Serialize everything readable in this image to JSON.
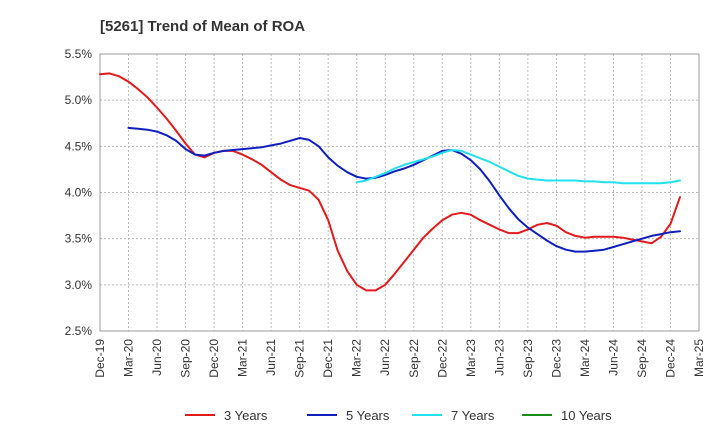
{
  "chart_data": {
    "type": "line",
    "title": "[5261]  Trend of Mean of ROA",
    "xlabel": "",
    "ylabel": "",
    "ylim": [
      2.5,
      5.5
    ],
    "y_ticks": [
      "2.5%",
      "3.0%",
      "3.5%",
      "4.0%",
      "4.5%",
      "5.0%",
      "5.5%"
    ],
    "y_tick_values": [
      2.5,
      3.0,
      3.5,
      4.0,
      4.5,
      5.0,
      5.5
    ],
    "x_tick_labels": [
      "Dec-19",
      "Mar-20",
      "Jun-20",
      "Sep-20",
      "Dec-20",
      "Mar-21",
      "Jun-21",
      "Sep-21",
      "Dec-21",
      "Mar-22",
      "Jun-22",
      "Sep-22",
      "Dec-22",
      "Mar-23",
      "Jun-23",
      "Sep-23",
      "Dec-23",
      "Mar-24",
      "Jun-24",
      "Sep-24",
      "Dec-24",
      "Mar-25"
    ],
    "grid": true,
    "legend_position": "bottom",
    "series": [
      {
        "name": "3 Years",
        "color": "#e31a1c",
        "points": [
          [
            "Dec-19",
            5.28
          ],
          [
            "Jan-20",
            5.29
          ],
          [
            "Feb-20",
            5.26
          ],
          [
            "Mar-20",
            5.2
          ],
          [
            "Apr-20",
            5.12
          ],
          [
            "May-20",
            5.03
          ],
          [
            "Jun-20",
            4.92
          ],
          [
            "Jul-20",
            4.8
          ],
          [
            "Aug-20",
            4.67
          ],
          [
            "Sep-20",
            4.53
          ],
          [
            "Oct-20",
            4.41
          ],
          [
            "Nov-20",
            4.38
          ],
          [
            "Dec-20",
            4.43
          ],
          [
            "Jan-21",
            4.45
          ],
          [
            "Feb-21",
            4.45
          ],
          [
            "Mar-21",
            4.41
          ],
          [
            "Apr-21",
            4.36
          ],
          [
            "May-21",
            4.3
          ],
          [
            "Jun-21",
            4.22
          ],
          [
            "Jul-21",
            4.14
          ],
          [
            "Aug-21",
            4.08
          ],
          [
            "Sep-21",
            4.05
          ],
          [
            "Oct-21",
            4.02
          ],
          [
            "Nov-21",
            3.92
          ],
          [
            "Dec-21",
            3.7
          ],
          [
            "Jan-22",
            3.37
          ],
          [
            "Feb-22",
            3.15
          ],
          [
            "Mar-22",
            3.0
          ],
          [
            "Apr-22",
            2.94
          ],
          [
            "May-22",
            2.94
          ],
          [
            "Jun-22",
            3.0
          ],
          [
            "Jul-22",
            3.12
          ],
          [
            "Aug-22",
            3.25
          ],
          [
            "Sep-22",
            3.38
          ],
          [
            "Oct-22",
            3.51
          ],
          [
            "Nov-22",
            3.61
          ],
          [
            "Dec-22",
            3.7
          ],
          [
            "Jan-23",
            3.76
          ],
          [
            "Feb-23",
            3.78
          ],
          [
            "Mar-23",
            3.76
          ],
          [
            "Apr-23",
            3.7
          ],
          [
            "May-23",
            3.65
          ],
          [
            "Jun-23",
            3.6
          ],
          [
            "Jul-23",
            3.56
          ],
          [
            "Aug-23",
            3.56
          ],
          [
            "Sep-23",
            3.6
          ],
          [
            "Oct-23",
            3.65
          ],
          [
            "Nov-23",
            3.67
          ],
          [
            "Dec-23",
            3.64
          ],
          [
            "Jan-24",
            3.57
          ],
          [
            "Feb-24",
            3.53
          ],
          [
            "Mar-24",
            3.51
          ],
          [
            "Apr-24",
            3.52
          ],
          [
            "May-24",
            3.52
          ],
          [
            "Jun-24",
            3.52
          ],
          [
            "Jul-24",
            3.51
          ],
          [
            "Aug-24",
            3.49
          ],
          [
            "Sep-24",
            3.47
          ],
          [
            "Oct-24",
            3.45
          ],
          [
            "Nov-24",
            3.52
          ],
          [
            "Dec-24",
            3.66
          ],
          [
            "Jan-25",
            3.95
          ]
        ]
      },
      {
        "name": "5 Years",
        "color": "#0f1fbf",
        "points": [
          [
            "Mar-20",
            4.7
          ],
          [
            "Apr-20",
            4.69
          ],
          [
            "May-20",
            4.68
          ],
          [
            "Jun-20",
            4.66
          ],
          [
            "Jul-20",
            4.62
          ],
          [
            "Aug-20",
            4.56
          ],
          [
            "Sep-20",
            4.47
          ],
          [
            "Oct-20",
            4.41
          ],
          [
            "Nov-20",
            4.4
          ],
          [
            "Dec-20",
            4.43
          ],
          [
            "Jan-21",
            4.45
          ],
          [
            "Feb-21",
            4.46
          ],
          [
            "Mar-21",
            4.47
          ],
          [
            "Apr-21",
            4.48
          ],
          [
            "May-21",
            4.49
          ],
          [
            "Jun-21",
            4.51
          ],
          [
            "Jul-21",
            4.53
          ],
          [
            "Aug-21",
            4.56
          ],
          [
            "Sep-21",
            4.59
          ],
          [
            "Oct-21",
            4.57
          ],
          [
            "Nov-21",
            4.5
          ],
          [
            "Dec-21",
            4.38
          ],
          [
            "Jan-22",
            4.29
          ],
          [
            "Feb-22",
            4.22
          ],
          [
            "Mar-22",
            4.17
          ],
          [
            "Apr-22",
            4.15
          ],
          [
            "May-22",
            4.16
          ],
          [
            "Jun-22",
            4.19
          ],
          [
            "Jul-22",
            4.23
          ],
          [
            "Aug-22",
            4.26
          ],
          [
            "Sep-22",
            4.3
          ],
          [
            "Oct-22",
            4.35
          ],
          [
            "Nov-22",
            4.4
          ],
          [
            "Dec-22",
            4.45
          ],
          [
            "Jan-23",
            4.46
          ],
          [
            "Feb-23",
            4.42
          ],
          [
            "Mar-23",
            4.35
          ],
          [
            "Apr-23",
            4.25
          ],
          [
            "May-23",
            4.12
          ],
          [
            "Jun-23",
            3.97
          ],
          [
            "Jul-23",
            3.83
          ],
          [
            "Aug-23",
            3.71
          ],
          [
            "Sep-23",
            3.62
          ],
          [
            "Oct-23",
            3.55
          ],
          [
            "Nov-23",
            3.48
          ],
          [
            "Dec-23",
            3.42
          ],
          [
            "Jan-24",
            3.38
          ],
          [
            "Feb-24",
            3.36
          ],
          [
            "Mar-24",
            3.36
          ],
          [
            "Apr-24",
            3.37
          ],
          [
            "May-24",
            3.38
          ],
          [
            "Jun-24",
            3.41
          ],
          [
            "Jul-24",
            3.44
          ],
          [
            "Aug-24",
            3.47
          ],
          [
            "Sep-24",
            3.5
          ],
          [
            "Oct-24",
            3.53
          ],
          [
            "Nov-24",
            3.55
          ],
          [
            "Dec-24",
            3.57
          ],
          [
            "Jan-25",
            3.58
          ]
        ]
      },
      {
        "name": "7 Years",
        "color": "#22e0ee",
        "points": [
          [
            "Mar-22",
            4.11
          ],
          [
            "Apr-22",
            4.13
          ],
          [
            "May-22",
            4.17
          ],
          [
            "Jun-22",
            4.21
          ],
          [
            "Jul-22",
            4.26
          ],
          [
            "Aug-22",
            4.3
          ],
          [
            "Sep-22",
            4.33
          ],
          [
            "Oct-22",
            4.36
          ],
          [
            "Nov-22",
            4.39
          ],
          [
            "Dec-22",
            4.43
          ],
          [
            "Jan-23",
            4.46
          ],
          [
            "Feb-23",
            4.45
          ],
          [
            "Mar-23",
            4.41
          ],
          [
            "Apr-23",
            4.37
          ],
          [
            "May-23",
            4.33
          ],
          [
            "Jun-23",
            4.28
          ],
          [
            "Jul-23",
            4.23
          ],
          [
            "Aug-23",
            4.18
          ],
          [
            "Sep-23",
            4.15
          ],
          [
            "Oct-23",
            4.14
          ],
          [
            "Nov-23",
            4.13
          ],
          [
            "Dec-23",
            4.13
          ],
          [
            "Jan-24",
            4.13
          ],
          [
            "Feb-24",
            4.13
          ],
          [
            "Mar-24",
            4.12
          ],
          [
            "Apr-24",
            4.12
          ],
          [
            "May-24",
            4.11
          ],
          [
            "Jun-24",
            4.11
          ],
          [
            "Jul-24",
            4.1
          ],
          [
            "Aug-24",
            4.1
          ],
          [
            "Sep-24",
            4.1
          ],
          [
            "Oct-24",
            4.1
          ],
          [
            "Nov-24",
            4.1
          ],
          [
            "Dec-24",
            4.11
          ],
          [
            "Jan-25",
            4.13
          ]
        ]
      },
      {
        "name": "10 Years",
        "color": "#1a8c1a",
        "points": []
      }
    ]
  }
}
